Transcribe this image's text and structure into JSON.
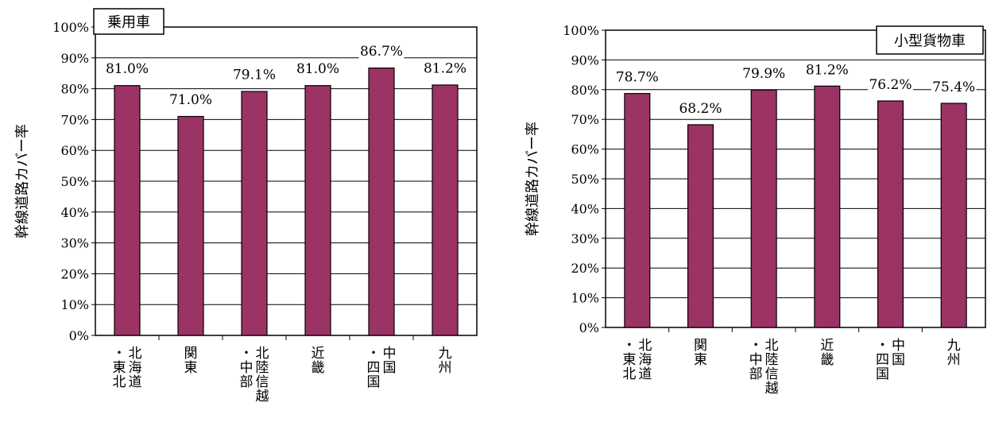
{
  "chart_data": [
    {
      "type": "bar",
      "title": "乗用車",
      "ylabel": "幹線道路カバー率",
      "categories": [
        [
          "北海道",
          "・東北"
        ],
        [
          "関東"
        ],
        [
          "北陸信越",
          "・中部"
        ],
        [
          "近畿"
        ],
        [
          "中国",
          "・四国"
        ],
        [
          "九州"
        ]
      ],
      "values": [
        81.0,
        71.0,
        79.1,
        81.0,
        86.7,
        81.2
      ],
      "value_labels": [
        "81.0%",
        "71.0%",
        "79.1%",
        "81.0%",
        "86.7%",
        "81.2%"
      ],
      "yticks": [
        "0%",
        "10%",
        "20%",
        "30%",
        "40%",
        "50%",
        "60%",
        "70%",
        "80%",
        "90%",
        "100%"
      ],
      "ylim": [
        0,
        100
      ],
      "grid": true,
      "title_position": "top-left",
      "bar_color": "#9b3364"
    },
    {
      "type": "bar",
      "title": "小型貨物車",
      "ylabel": "幹線道路カバー率",
      "categories": [
        [
          "北海道",
          "・東北"
        ],
        [
          "関東"
        ],
        [
          "北陸信越",
          "・中部"
        ],
        [
          "近畿"
        ],
        [
          "中国",
          "・四国"
        ],
        [
          "九州"
        ]
      ],
      "values": [
        78.7,
        68.2,
        79.9,
        81.2,
        76.2,
        75.4
      ],
      "value_labels": [
        "78.7%",
        "68.2%",
        "79.9%",
        "81.2%",
        "76.2%",
        "75.4%"
      ],
      "yticks": [
        "0%",
        "10%",
        "20%",
        "30%",
        "40%",
        "50%",
        "60%",
        "70%",
        "80%",
        "90%",
        "100%"
      ],
      "ylim": [
        0,
        100
      ],
      "grid": true,
      "title_position": "top-right",
      "bar_color": "#9b3364"
    }
  ]
}
